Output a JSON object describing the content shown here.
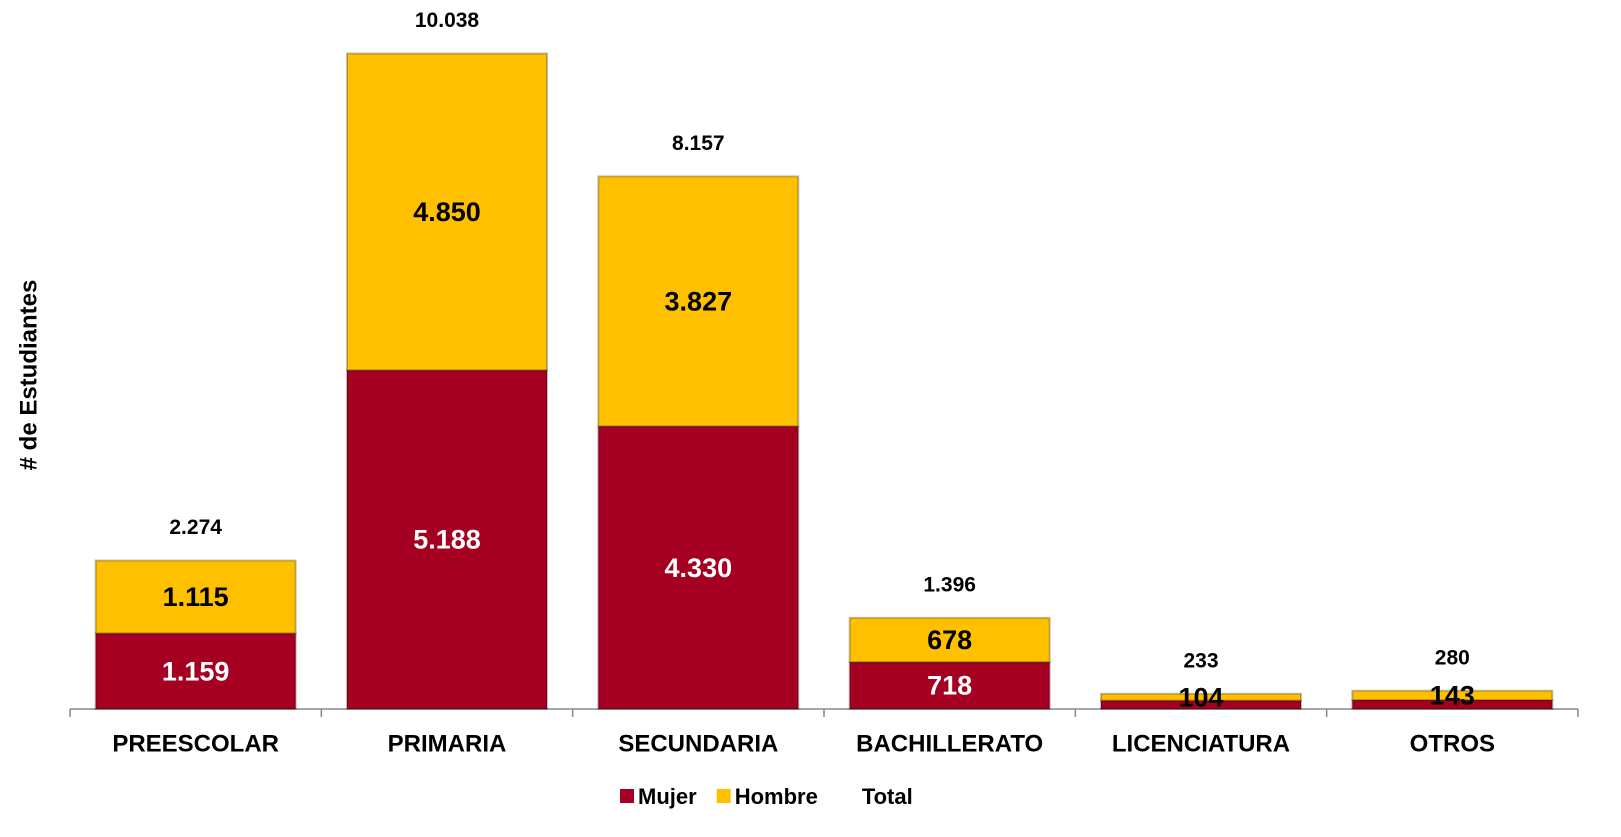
{
  "chart_data": {
    "type": "bar",
    "stacked": true,
    "y_label": "# de Estudiantes",
    "categories": [
      "PREESCOLAR",
      "PRIMARIA",
      "SECUNDARIA",
      "BACHILLERATO",
      "LICENCIATURA",
      "OTROS"
    ],
    "series": [
      {
        "name": "Mujer",
        "color": "#a50021",
        "label_color": "#ffffff",
        "values": [
          1159,
          5188,
          4330,
          718,
          129,
          137
        ],
        "value_labels": [
          "1.159",
          "5.188",
          "4.330",
          "718",
          null,
          null
        ]
      },
      {
        "name": "Hombre",
        "color": "#ffc000",
        "label_color": "#000000",
        "values": [
          1115,
          4850,
          3827,
          678,
          104,
          143
        ],
        "value_labels": [
          "1.115",
          "4.850",
          "3.827",
          "678",
          "104",
          "143"
        ]
      },
      {
        "name": "Total",
        "label_only": true,
        "label_color": "#000000",
        "values": [
          2274,
          10038,
          8157,
          1396,
          233,
          280
        ],
        "value_labels": [
          "2.274",
          "10.038",
          "8.157",
          "1.396",
          "233",
          "280"
        ]
      }
    ],
    "ylim": [
      0,
      10000
    ],
    "grid": false
  }
}
